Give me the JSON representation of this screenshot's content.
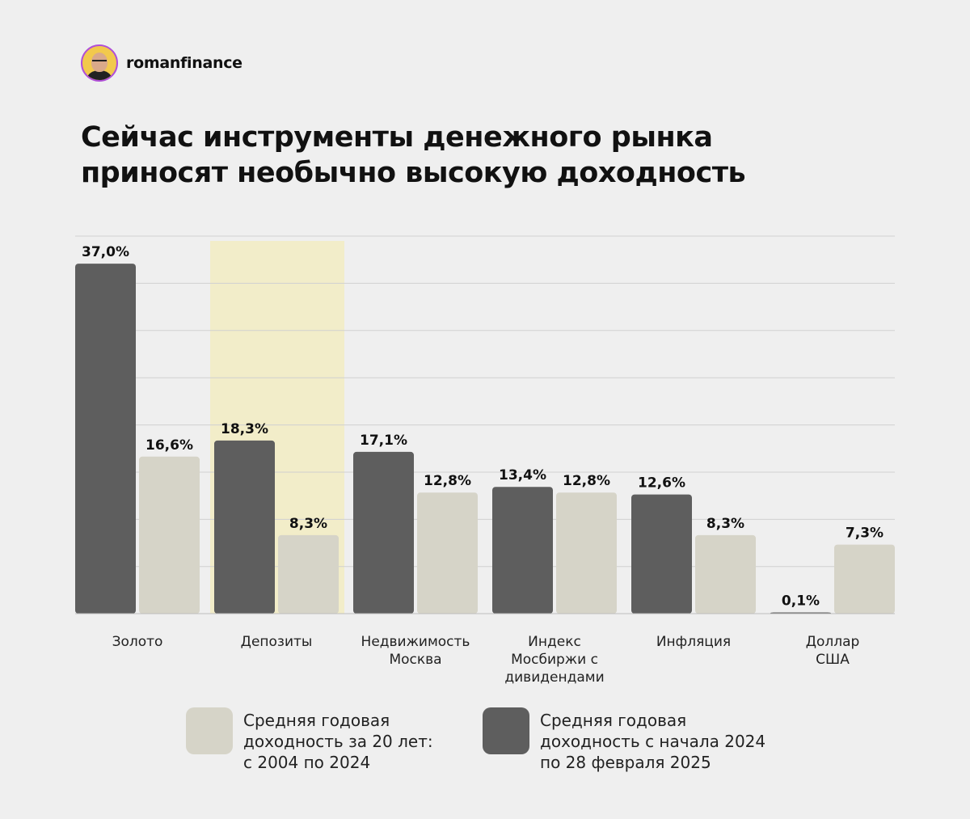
{
  "header": {
    "brand": "romanfinance"
  },
  "title_lines": [
    "Сейчас инструменты денежного рынка",
    "приносят необычно высокую доходность"
  ],
  "colors": {
    "series_recent": "#5e5e5e",
    "series_20y": "#d6d4c8",
    "highlight": "#f2edc9",
    "grid": "#d0d0d0"
  },
  "chart_data": {
    "type": "bar",
    "categories": [
      [
        "Золото"
      ],
      [
        "Депозиты"
      ],
      [
        "Недвижимость",
        "Москва"
      ],
      [
        "Индекс",
        "Мосбиржи с",
        "дивидендами"
      ],
      [
        "Инфляция"
      ],
      [
        "Доллар",
        "США"
      ]
    ],
    "series": [
      {
        "name": "Средняя годовая доходность с начала 2024 по 28 февраля 2025",
        "values": [
          37.0,
          18.3,
          17.1,
          13.4,
          12.6,
          0.1
        ],
        "labels": [
          "37,0%",
          "18,3%",
          "17,1%",
          "13,4%",
          "12,6%",
          "0,1%"
        ]
      },
      {
        "name": "Средняя годовая доходность за 20 лет: с 2004 по 2024",
        "values": [
          16.6,
          8.3,
          12.8,
          12.8,
          8.3,
          7.3
        ],
        "labels": [
          "16,6%",
          "8,3%",
          "12,8%",
          "12,8%",
          "8,3%",
          "7,3%"
        ]
      }
    ],
    "highlighted_category": "Депозиты",
    "ylim": [
      0,
      40
    ],
    "grid": true
  },
  "legend": [
    {
      "text": "Средняя годовая\nдоходность за 20 лет:\nс 2004 по 2024"
    },
    {
      "text": "Средняя годовая\nдоходность с начала 2024\nпо 28 февраля 2025"
    }
  ]
}
